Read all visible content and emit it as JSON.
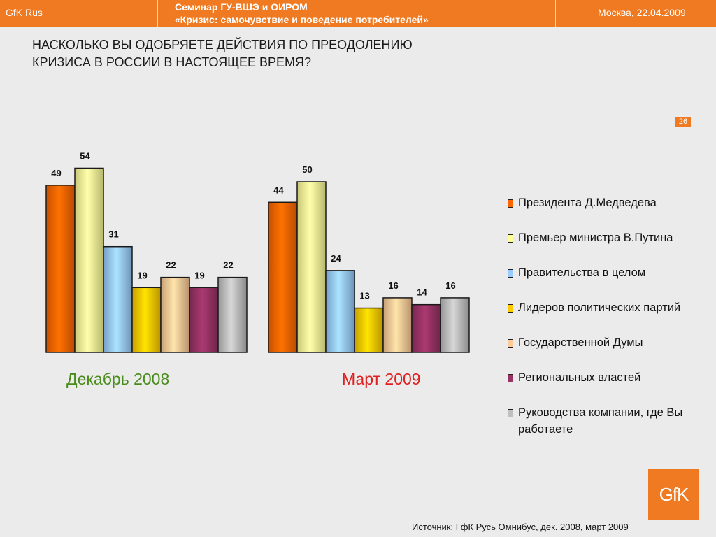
{
  "header": {
    "brand": "GfK Rus",
    "seminar_line1": "Семинар ГУ-ВШЭ и ОИРОМ",
    "seminar_line2": "«Кризис: самочувствие и поведение потребителей»",
    "date": "Москва, 22.04.2009"
  },
  "question": {
    "line1": "НАСКОЛЬКО ВЫ ОДОБРЯЕТЕ ДЕЙСТВИЯ ПО ПРЕОДОЛЕНИЮ",
    "line2": "КРИЗИСА В РОССИИ В НАСТОЯЩЕЕ ВРЕМЯ?"
  },
  "page_number": "26",
  "colors": {
    "accent": "#f07a22",
    "december_label": "#4a8c1c",
    "march_label": "#e01f1f"
  },
  "chart_data": {
    "type": "bar",
    "title": "",
    "xlabel": "",
    "ylabel": "",
    "ylim": [
      0,
      60
    ],
    "grid": false,
    "legend_position": "right",
    "categories": [
      "Декабрь 2008",
      "Март 2009"
    ],
    "series": [
      {
        "name": "Президента Д.Медведева",
        "values": [
          49,
          44
        ],
        "color": "#ff6600"
      },
      {
        "name": "Премьер министра В.Путина",
        "values": [
          54,
          50
        ],
        "color": "#ffff99"
      },
      {
        "name": "Правительства в целом",
        "values": [
          31,
          24
        ],
        "color": "#99ccff"
      },
      {
        "name": "Лидеров политических партий",
        "values": [
          19,
          13
        ],
        "color": "#ffcc00"
      },
      {
        "name": "Государственной Думы",
        "values": [
          22,
          16
        ],
        "color": "#ffcc99"
      },
      {
        "name": "Региональных властей",
        "values": [
          19,
          14
        ],
        "color": "#993366"
      },
      {
        "name": "Руководства компании, где Вы работаете",
        "values": [
          22,
          16
        ],
        "color": "#c0c0c0"
      }
    ]
  },
  "source": "Источник: ГфК Русь Омнибус, дек. 2008, март 2009",
  "logo_text": "GfK"
}
